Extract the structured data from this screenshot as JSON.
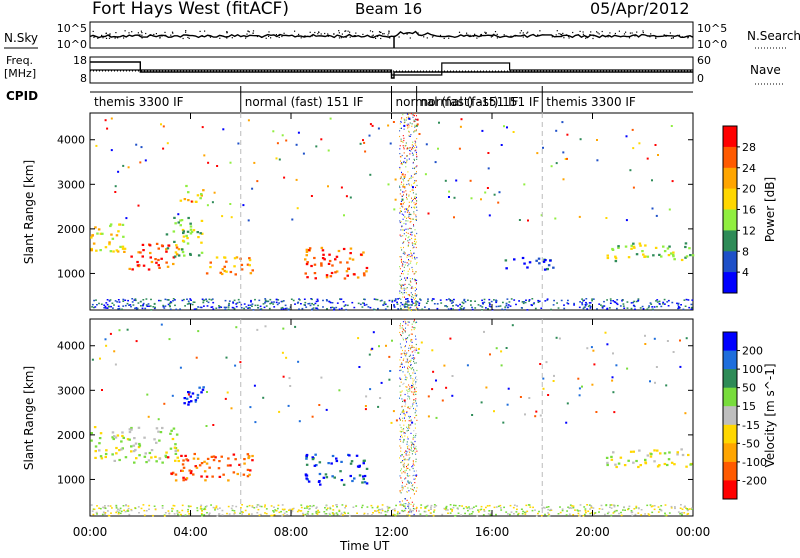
{
  "header": {
    "station": "Fort Hays West (fitACF)",
    "beam": "Beam 16",
    "date": "05/Apr/2012"
  },
  "left_labels": {
    "nsky": "N.Sky",
    "freq_line1": "Freq.",
    "freq_line2": "[MHz]",
    "cpid": "CPID"
  },
  "right_labels": {
    "nsearch": "N.Search",
    "nave": "Nave"
  },
  "noise_panel": {
    "left_ticks": [
      "10^5",
      "10^0"
    ],
    "right_ticks": [
      "10^5",
      "10^0"
    ]
  },
  "freq_panel": {
    "left_ticks": [
      "18",
      "8"
    ],
    "right_ticks": [
      "60",
      "0"
    ]
  },
  "cpid_segments": [
    {
      "label": "themis 3300 IF",
      "start_hour": 0.0
    },
    {
      "label": "normal (fast) 151 IF",
      "start_hour": 6.0
    },
    {
      "label": "normal (fast) -151 IF",
      "start_hour": 12.0
    },
    {
      "label": "normal (fast) 151 IF",
      "start_hour": 13.0
    },
    {
      "label": "themis 3300 IF",
      "start_hour": 18.0
    }
  ],
  "chart_data": [
    {
      "type": "heatmap",
      "title": "Power",
      "ylabel": "Slant Range [km]",
      "xlabel": "Time UT",
      "x_ticks": [
        "00:00",
        "04:00",
        "08:00",
        "12:00",
        "16:00",
        "20:00",
        "00:00"
      ],
      "xlim_hours": [
        0,
        24
      ],
      "ylim": [
        180,
        4600
      ],
      "y_ticks": [
        1000,
        2000,
        3000,
        4000
      ],
      "colorbar": {
        "label": "Power [dB]",
        "ticks": [
          "28",
          "24",
          "20",
          "16",
          "12",
          "8",
          "4"
        ],
        "colors": [
          "#ff0000",
          "#ff5a00",
          "#ffa500",
          "#ffd700",
          "#90ee40",
          "#2e8b57",
          "#1e50c8",
          "#0000ff"
        ]
      },
      "scatter_regions": [
        {
          "t0": 0.0,
          "t1": 1.5,
          "r0": 1500,
          "r1": 2200,
          "level": 3
        },
        {
          "t0": 1.5,
          "t1": 3.5,
          "r0": 1100,
          "r1": 1700,
          "level": 1
        },
        {
          "t0": 3.0,
          "t1": 4.5,
          "r0": 1400,
          "r1": 2300,
          "level": 4
        },
        {
          "t0": 3.5,
          "t1": 4.5,
          "r0": 2600,
          "r1": 3000,
          "level": 3
        },
        {
          "t0": 4.5,
          "t1": 6.5,
          "r0": 1000,
          "r1": 1400,
          "level": 2
        },
        {
          "t0": 8.5,
          "t1": 11.0,
          "r0": 900,
          "r1": 1600,
          "level": 1
        },
        {
          "t0": 16.5,
          "t1": 18.5,
          "r0": 1100,
          "r1": 1400,
          "level": 6
        },
        {
          "t0": 20.5,
          "t1": 24.0,
          "r0": 1300,
          "r1": 1700,
          "level": 4
        }
      ]
    },
    {
      "type": "heatmap",
      "title": "Velocity",
      "ylabel": "Slant Range [km]",
      "xlabel": "Time UT",
      "x_ticks": [
        "00:00",
        "04:00",
        "08:00",
        "12:00",
        "16:00",
        "20:00",
        "00:00"
      ],
      "xlim_hours": [
        0,
        24
      ],
      "ylim": [
        180,
        4600
      ],
      "y_ticks": [
        1000,
        2000,
        3000,
        4000
      ],
      "colorbar": {
        "label": "Velocity [m s^-1]",
        "ticks": [
          "200",
          "100",
          "50",
          "15",
          "-15",
          "-50",
          "-100",
          "-200"
        ],
        "colors": [
          "#0000ff",
          "#1e6edc",
          "#2e8b57",
          "#78dc3c",
          "#bebebe",
          "#ffd700",
          "#ffa500",
          "#ff5a00",
          "#ff0000"
        ]
      },
      "scatter_regions": [
        {
          "t0": 0.0,
          "t1": 3.5,
          "r0": 1400,
          "r1": 2200,
          "level": 4
        },
        {
          "t0": 3.0,
          "t1": 6.5,
          "r0": 1000,
          "r1": 1600,
          "level": 7
        },
        {
          "t0": 3.5,
          "t1": 4.5,
          "r0": 2600,
          "r1": 3100,
          "level": 0
        },
        {
          "t0": 8.5,
          "t1": 11.0,
          "r0": 900,
          "r1": 1600,
          "level": 1
        },
        {
          "t0": 20.5,
          "t1": 24.0,
          "r0": 1300,
          "r1": 1700,
          "level": 4
        }
      ]
    }
  ]
}
